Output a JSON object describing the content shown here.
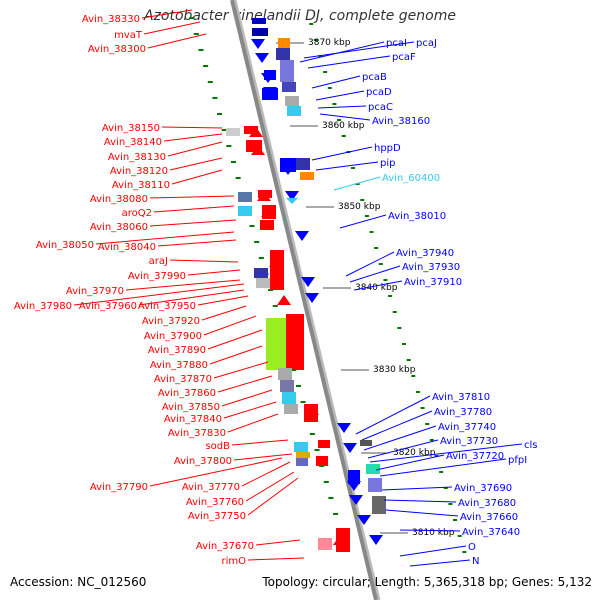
{
  "title": "Azotobacter vinelandii DJ, complete genome",
  "accession": "Accession: NC_012560",
  "summary": "Topology: circular; Length: 5,365,318 bp; Genes: 5,132",
  "colors": {
    "forward": "#ff0000",
    "reverse": "#0000ff",
    "highlight": "#33ccee",
    "tick": "#007700",
    "backbone": "#888888"
  },
  "scale_labels": [
    "3870 kbp",
    "3860 kbp",
    "3850 kbp",
    "3840 kbp",
    "3830 kbp",
    "3820 kbp",
    "3810 kbp"
  ],
  "left_genes": [
    "Avin_38330",
    "mvaT",
    "Avin_38300",
    "Avin_38150",
    "Avin_38140",
    "Avin_38130",
    "Avin_38120",
    "Avin_38110",
    "Avin_38080",
    "aroQ2",
    "Avin_38060",
    "Avin_38050",
    "Avin_38040",
    "araJ",
    "Avin_37990",
    "Avin_37970",
    "Avin_37980",
    "Avin_37960",
    "Avin_37950",
    "Avin_37920",
    "Avin_37900",
    "Avin_37890",
    "Avin_37880",
    "Avin_37870",
    "Avin_37860",
    "Avin_37850",
    "Avin_37840",
    "Avin_37830",
    "sodB",
    "Avin_37800",
    "Avin_37790",
    "Avin_37770",
    "Avin_37760",
    "Avin_37750",
    "Avin_37670",
    "rimO"
  ],
  "right_genes": [
    "pcaI",
    "pcaJ",
    "pcaF",
    "pcaB",
    "pcaD",
    "pcaC",
    "Avin_38160",
    "hppD",
    "pip",
    "Avin_60400",
    "Avin_38010",
    "Avin_37940",
    "Avin_37930",
    "Avin_37910",
    "Avin_37810",
    "Avin_37780",
    "Avin_37740",
    "Avin_37730",
    "cls",
    "Avin_37720",
    "pfpI",
    "Avin_37690",
    "Avin_37680",
    "Avin_37660",
    "Avin_37640",
    "O",
    "N"
  ]
}
